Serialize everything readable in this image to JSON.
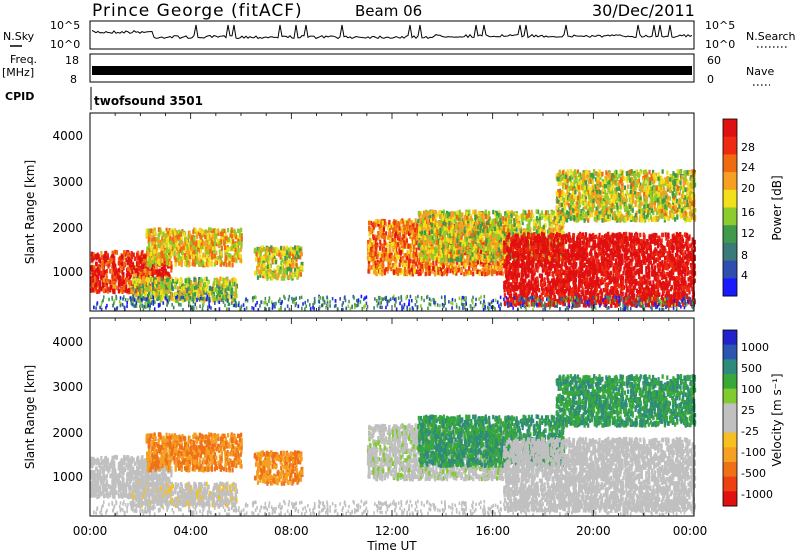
{
  "header": {
    "station": "Prince George (fitACF)",
    "beam": "Beam 06",
    "date": "30/Dec/2011"
  },
  "noise_panel": {
    "left_label": "N.Sky",
    "right_label": "N.Search",
    "left_ticks": [
      "10^5",
      "10^0"
    ],
    "right_ticks": [
      "10^5",
      "10^0"
    ]
  },
  "freq_panel": {
    "left_label": "Freq.",
    "left_unit": "[MHz]",
    "right_label": "Nave",
    "left_ticks": [
      "18",
      "8"
    ],
    "right_ticks": [
      "60",
      "0"
    ]
  },
  "cpid": {
    "label": "CPID",
    "program": "twofsound 3501"
  },
  "power_panel": {
    "ylabel": "Slant Range [km]",
    "yticks": [
      "4000",
      "3000",
      "2000",
      "1000"
    ],
    "colorbar_label": "Power [dB]",
    "colorbar_ticks": [
      "28",
      "24",
      "20",
      "16",
      "12",
      "8",
      "4"
    ],
    "colors": [
      "#1a1aff",
      "#2f4fb0",
      "#3c7a7a",
      "#3f9a4a",
      "#8ccc2c",
      "#f2e01a",
      "#f5a020",
      "#f06a10",
      "#ee2a10",
      "#e01010"
    ]
  },
  "velocity_panel": {
    "ylabel": "Slant Range [km]",
    "yticks": [
      "4000",
      "3000",
      "2000",
      "1000"
    ],
    "colorbar_label": "Velocity [m s⁻¹]",
    "colorbar_ticks": [
      "1000",
      "500",
      "100",
      "25",
      "-25",
      "-100",
      "-500",
      "-1000"
    ],
    "colors": [
      "#2222cc",
      "#2a55b0",
      "#2e8a7a",
      "#38a83a",
      "#80cc30",
      "#c0c0c0",
      "#c0c0c0",
      "#f5c020",
      "#f5a020",
      "#f07018",
      "#ee4010",
      "#e01010"
    ]
  },
  "xaxis": {
    "ticks": [
      "00:00",
      "04:00",
      "08:00",
      "12:00",
      "16:00",
      "20:00",
      "00:00"
    ],
    "label": "Time UT"
  },
  "chart_data": {
    "type": "heatmap",
    "title": "Prince George (fitACF)",
    "subtitle": "Beam 06",
    "xlabel": "Time UT",
    "ylabel": "Slant Range [km]",
    "x_range_hours": [
      0,
      24
    ],
    "ylim": [
      180,
      4600
    ],
    "series": [
      {
        "name": "Power [dB]",
        "value_range": [
          0,
          30
        ]
      },
      {
        "name": "Velocity [m s⁻¹]",
        "value_range": [
          -1000,
          1000
        ]
      }
    ],
    "scatter_regions": [
      {
        "t": [
          0.0,
          3.2
        ],
        "range": [
          600,
          1500
        ],
        "power": 26,
        "velocity": 25
      },
      {
        "t": [
          1.6,
          5.8
        ],
        "range": [
          400,
          900
        ],
        "power": 14,
        "velocity": -100
      },
      {
        "t": [
          2.2,
          6.0
        ],
        "range": [
          1200,
          2000
        ],
        "power": 18,
        "velocity": -500
      },
      {
        "t": [
          6.5,
          8.4
        ],
        "range": [
          900,
          1600
        ],
        "power": 16,
        "velocity": -500
      },
      {
        "t": [
          11.0,
          16.6
        ],
        "range": [
          1000,
          2200
        ],
        "power": 22,
        "velocity": 100
      },
      {
        "t": [
          13.0,
          18.8
        ],
        "range": [
          1300,
          2400
        ],
        "power": 16,
        "velocity": 500
      },
      {
        "t": [
          16.4,
          24.0
        ],
        "range": [
          300,
          1900
        ],
        "power": 30,
        "velocity": 25
      },
      {
        "t": [
          18.5,
          24.0
        ],
        "range": [
          2200,
          3300
        ],
        "power": 16,
        "velocity": 500
      }
    ]
  }
}
